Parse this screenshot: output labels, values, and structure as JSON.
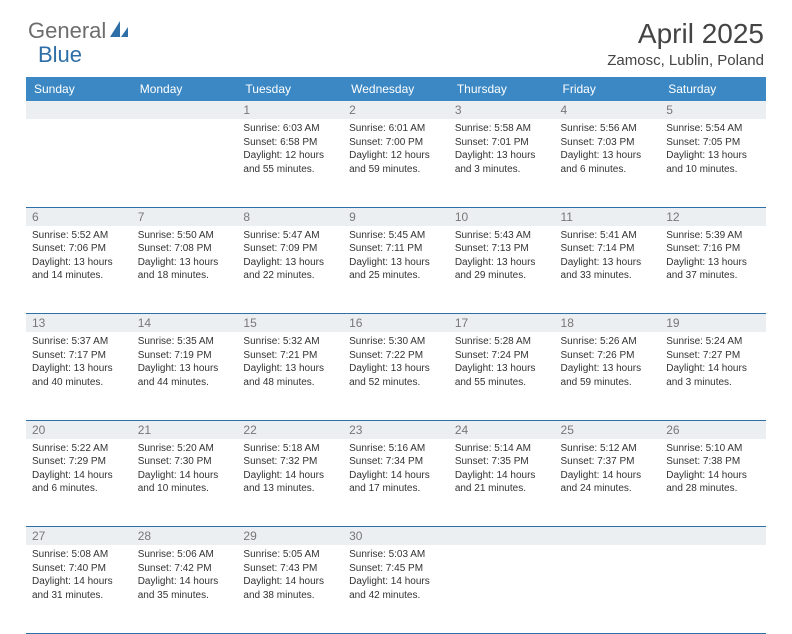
{
  "brand": {
    "part1": "General",
    "part2": "Blue"
  },
  "title": "April 2025",
  "location": "Zamosc, Lublin, Poland",
  "colors": {
    "header_bg": "#3b88c4",
    "border": "#2f6fa8",
    "daynum_bg": "#eceff1",
    "daynum_color": "#777777",
    "text": "#333333",
    "logo_gray": "#6d6d6d",
    "logo_blue": "#2f6fa8",
    "background": "#ffffff"
  },
  "day_labels": [
    "Sunday",
    "Monday",
    "Tuesday",
    "Wednesday",
    "Thursday",
    "Friday",
    "Saturday"
  ],
  "weeks": [
    [
      null,
      null,
      {
        "d": "1",
        "sr": "6:03 AM",
        "ss": "6:58 PM",
        "dl": "12 hours and 55 minutes."
      },
      {
        "d": "2",
        "sr": "6:01 AM",
        "ss": "7:00 PM",
        "dl": "12 hours and 59 minutes."
      },
      {
        "d": "3",
        "sr": "5:58 AM",
        "ss": "7:01 PM",
        "dl": "13 hours and 3 minutes."
      },
      {
        "d": "4",
        "sr": "5:56 AM",
        "ss": "7:03 PM",
        "dl": "13 hours and 6 minutes."
      },
      {
        "d": "5",
        "sr": "5:54 AM",
        "ss": "7:05 PM",
        "dl": "13 hours and 10 minutes."
      }
    ],
    [
      {
        "d": "6",
        "sr": "5:52 AM",
        "ss": "7:06 PM",
        "dl": "13 hours and 14 minutes."
      },
      {
        "d": "7",
        "sr": "5:50 AM",
        "ss": "7:08 PM",
        "dl": "13 hours and 18 minutes."
      },
      {
        "d": "8",
        "sr": "5:47 AM",
        "ss": "7:09 PM",
        "dl": "13 hours and 22 minutes."
      },
      {
        "d": "9",
        "sr": "5:45 AM",
        "ss": "7:11 PM",
        "dl": "13 hours and 25 minutes."
      },
      {
        "d": "10",
        "sr": "5:43 AM",
        "ss": "7:13 PM",
        "dl": "13 hours and 29 minutes."
      },
      {
        "d": "11",
        "sr": "5:41 AM",
        "ss": "7:14 PM",
        "dl": "13 hours and 33 minutes."
      },
      {
        "d": "12",
        "sr": "5:39 AM",
        "ss": "7:16 PM",
        "dl": "13 hours and 37 minutes."
      }
    ],
    [
      {
        "d": "13",
        "sr": "5:37 AM",
        "ss": "7:17 PM",
        "dl": "13 hours and 40 minutes."
      },
      {
        "d": "14",
        "sr": "5:35 AM",
        "ss": "7:19 PM",
        "dl": "13 hours and 44 minutes."
      },
      {
        "d": "15",
        "sr": "5:32 AM",
        "ss": "7:21 PM",
        "dl": "13 hours and 48 minutes."
      },
      {
        "d": "16",
        "sr": "5:30 AM",
        "ss": "7:22 PM",
        "dl": "13 hours and 52 minutes."
      },
      {
        "d": "17",
        "sr": "5:28 AM",
        "ss": "7:24 PM",
        "dl": "13 hours and 55 minutes."
      },
      {
        "d": "18",
        "sr": "5:26 AM",
        "ss": "7:26 PM",
        "dl": "13 hours and 59 minutes."
      },
      {
        "d": "19",
        "sr": "5:24 AM",
        "ss": "7:27 PM",
        "dl": "14 hours and 3 minutes."
      }
    ],
    [
      {
        "d": "20",
        "sr": "5:22 AM",
        "ss": "7:29 PM",
        "dl": "14 hours and 6 minutes."
      },
      {
        "d": "21",
        "sr": "5:20 AM",
        "ss": "7:30 PM",
        "dl": "14 hours and 10 minutes."
      },
      {
        "d": "22",
        "sr": "5:18 AM",
        "ss": "7:32 PM",
        "dl": "14 hours and 13 minutes."
      },
      {
        "d": "23",
        "sr": "5:16 AM",
        "ss": "7:34 PM",
        "dl": "14 hours and 17 minutes."
      },
      {
        "d": "24",
        "sr": "5:14 AM",
        "ss": "7:35 PM",
        "dl": "14 hours and 21 minutes."
      },
      {
        "d": "25",
        "sr": "5:12 AM",
        "ss": "7:37 PM",
        "dl": "14 hours and 24 minutes."
      },
      {
        "d": "26",
        "sr": "5:10 AM",
        "ss": "7:38 PM",
        "dl": "14 hours and 28 minutes."
      }
    ],
    [
      {
        "d": "27",
        "sr": "5:08 AM",
        "ss": "7:40 PM",
        "dl": "14 hours and 31 minutes."
      },
      {
        "d": "28",
        "sr": "5:06 AM",
        "ss": "7:42 PM",
        "dl": "14 hours and 35 minutes."
      },
      {
        "d": "29",
        "sr": "5:05 AM",
        "ss": "7:43 PM",
        "dl": "14 hours and 38 minutes."
      },
      {
        "d": "30",
        "sr": "5:03 AM",
        "ss": "7:45 PM",
        "dl": "14 hours and 42 minutes."
      },
      null,
      null,
      null
    ]
  ],
  "labels": {
    "sunrise": "Sunrise:",
    "sunset": "Sunset:",
    "daylight": "Daylight:"
  }
}
